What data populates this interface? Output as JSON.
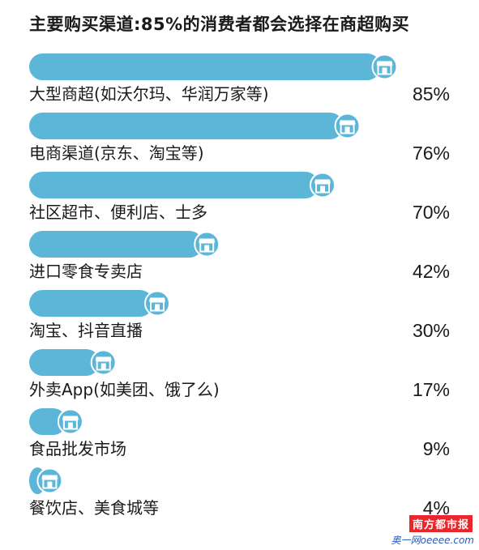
{
  "chart_data": {
    "type": "bar",
    "title": "主要购买渠道:85%的消费者都会选择在商超购买",
    "categories": [
      "大型商超(如沃尔玛、华润万家等)",
      "电商渠道(京东、淘宝等)",
      "社区超市、便利店、士多",
      "进口零食专卖店",
      "淘宝、抖音直播",
      "外卖App(如美团、饿了么)",
      "食品批发市场",
      "餐饮店、美食城等"
    ],
    "values": [
      85,
      76,
      70,
      42,
      30,
      17,
      9,
      4
    ],
    "value_labels": [
      "85%",
      "76%",
      "70%",
      "42%",
      "30%",
      "17%",
      "9%",
      "4%"
    ],
    "xlim": [
      0,
      100
    ],
    "orientation": "horizontal",
    "bar_color": "#5bb6d8",
    "icon": "store-icon"
  },
  "watermark": {
    "logo_text": "南方都市报",
    "site_text": "奥一网oeeee.com"
  }
}
